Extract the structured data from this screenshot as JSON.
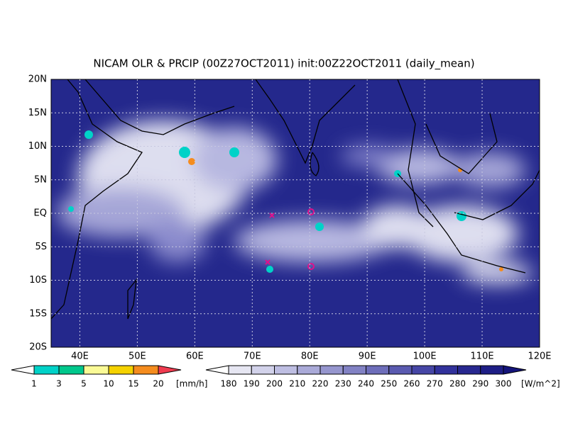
{
  "title": "NICAM OLR & PRCIP (00Z27OCT2011) init:00Z22OCT2011 (daily_mean)",
  "lat_labels": [
    "20N",
    "15N",
    "10N",
    "5N",
    "EQ",
    "5S",
    "10S",
    "15S",
    "20S"
  ],
  "lon_labels": [
    "40E",
    "50E",
    "60E",
    "70E",
    "80E",
    "90E",
    "100E",
    "110E",
    "120E"
  ],
  "precip_colorbar": {
    "ticks": [
      1,
      3,
      5,
      10,
      15,
      20
    ],
    "unit": "[mm/h]",
    "colors": [
      "#00d2c8",
      "#00c88c",
      "#fafa96",
      "#f5d200",
      "#f58c1e",
      "#f03c50"
    ]
  },
  "olr_colorbar": {
    "ticks": [
      180,
      190,
      200,
      210,
      220,
      230,
      240,
      250,
      260,
      270,
      280,
      290,
      300
    ],
    "unit": "[W/m^2]",
    "colors": [
      "#e6e6f2",
      "#d2d2ea",
      "#bebee2",
      "#aaaad8",
      "#9696ce",
      "#8282c4",
      "#6e6eba",
      "#5a5ab0",
      "#4646a6",
      "#32329c",
      "#282890",
      "#1e1e86",
      "#14147a"
    ]
  }
}
